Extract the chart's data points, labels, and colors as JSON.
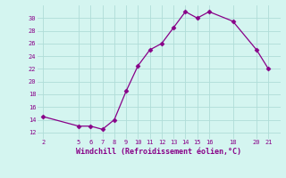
{
  "x": [
    2,
    5,
    6,
    7,
    8,
    9,
    10,
    11,
    12,
    13,
    14,
    15,
    16,
    18,
    20,
    21
  ],
  "y": [
    14.5,
    13,
    13,
    12.5,
    14,
    18.5,
    22.5,
    25,
    26,
    28.5,
    31,
    30,
    31,
    29.5,
    25,
    22
  ],
  "line_color": "#880088",
  "marker": "D",
  "marker_size": 2.5,
  "bg_color": "#d4f5f0",
  "grid_color": "#b0ddd8",
  "xlabel": "Windchill (Refroidissement éolien,°C)",
  "xlabel_color": "#880088",
  "tick_color": "#880088",
  "xlim": [
    1.5,
    22
  ],
  "ylim": [
    11,
    32
  ],
  "yticks": [
    12,
    14,
    16,
    18,
    20,
    22,
    24,
    26,
    28,
    30
  ],
  "xticks": [
    2,
    5,
    6,
    7,
    8,
    9,
    10,
    11,
    12,
    13,
    14,
    15,
    16,
    18,
    20,
    21
  ]
}
